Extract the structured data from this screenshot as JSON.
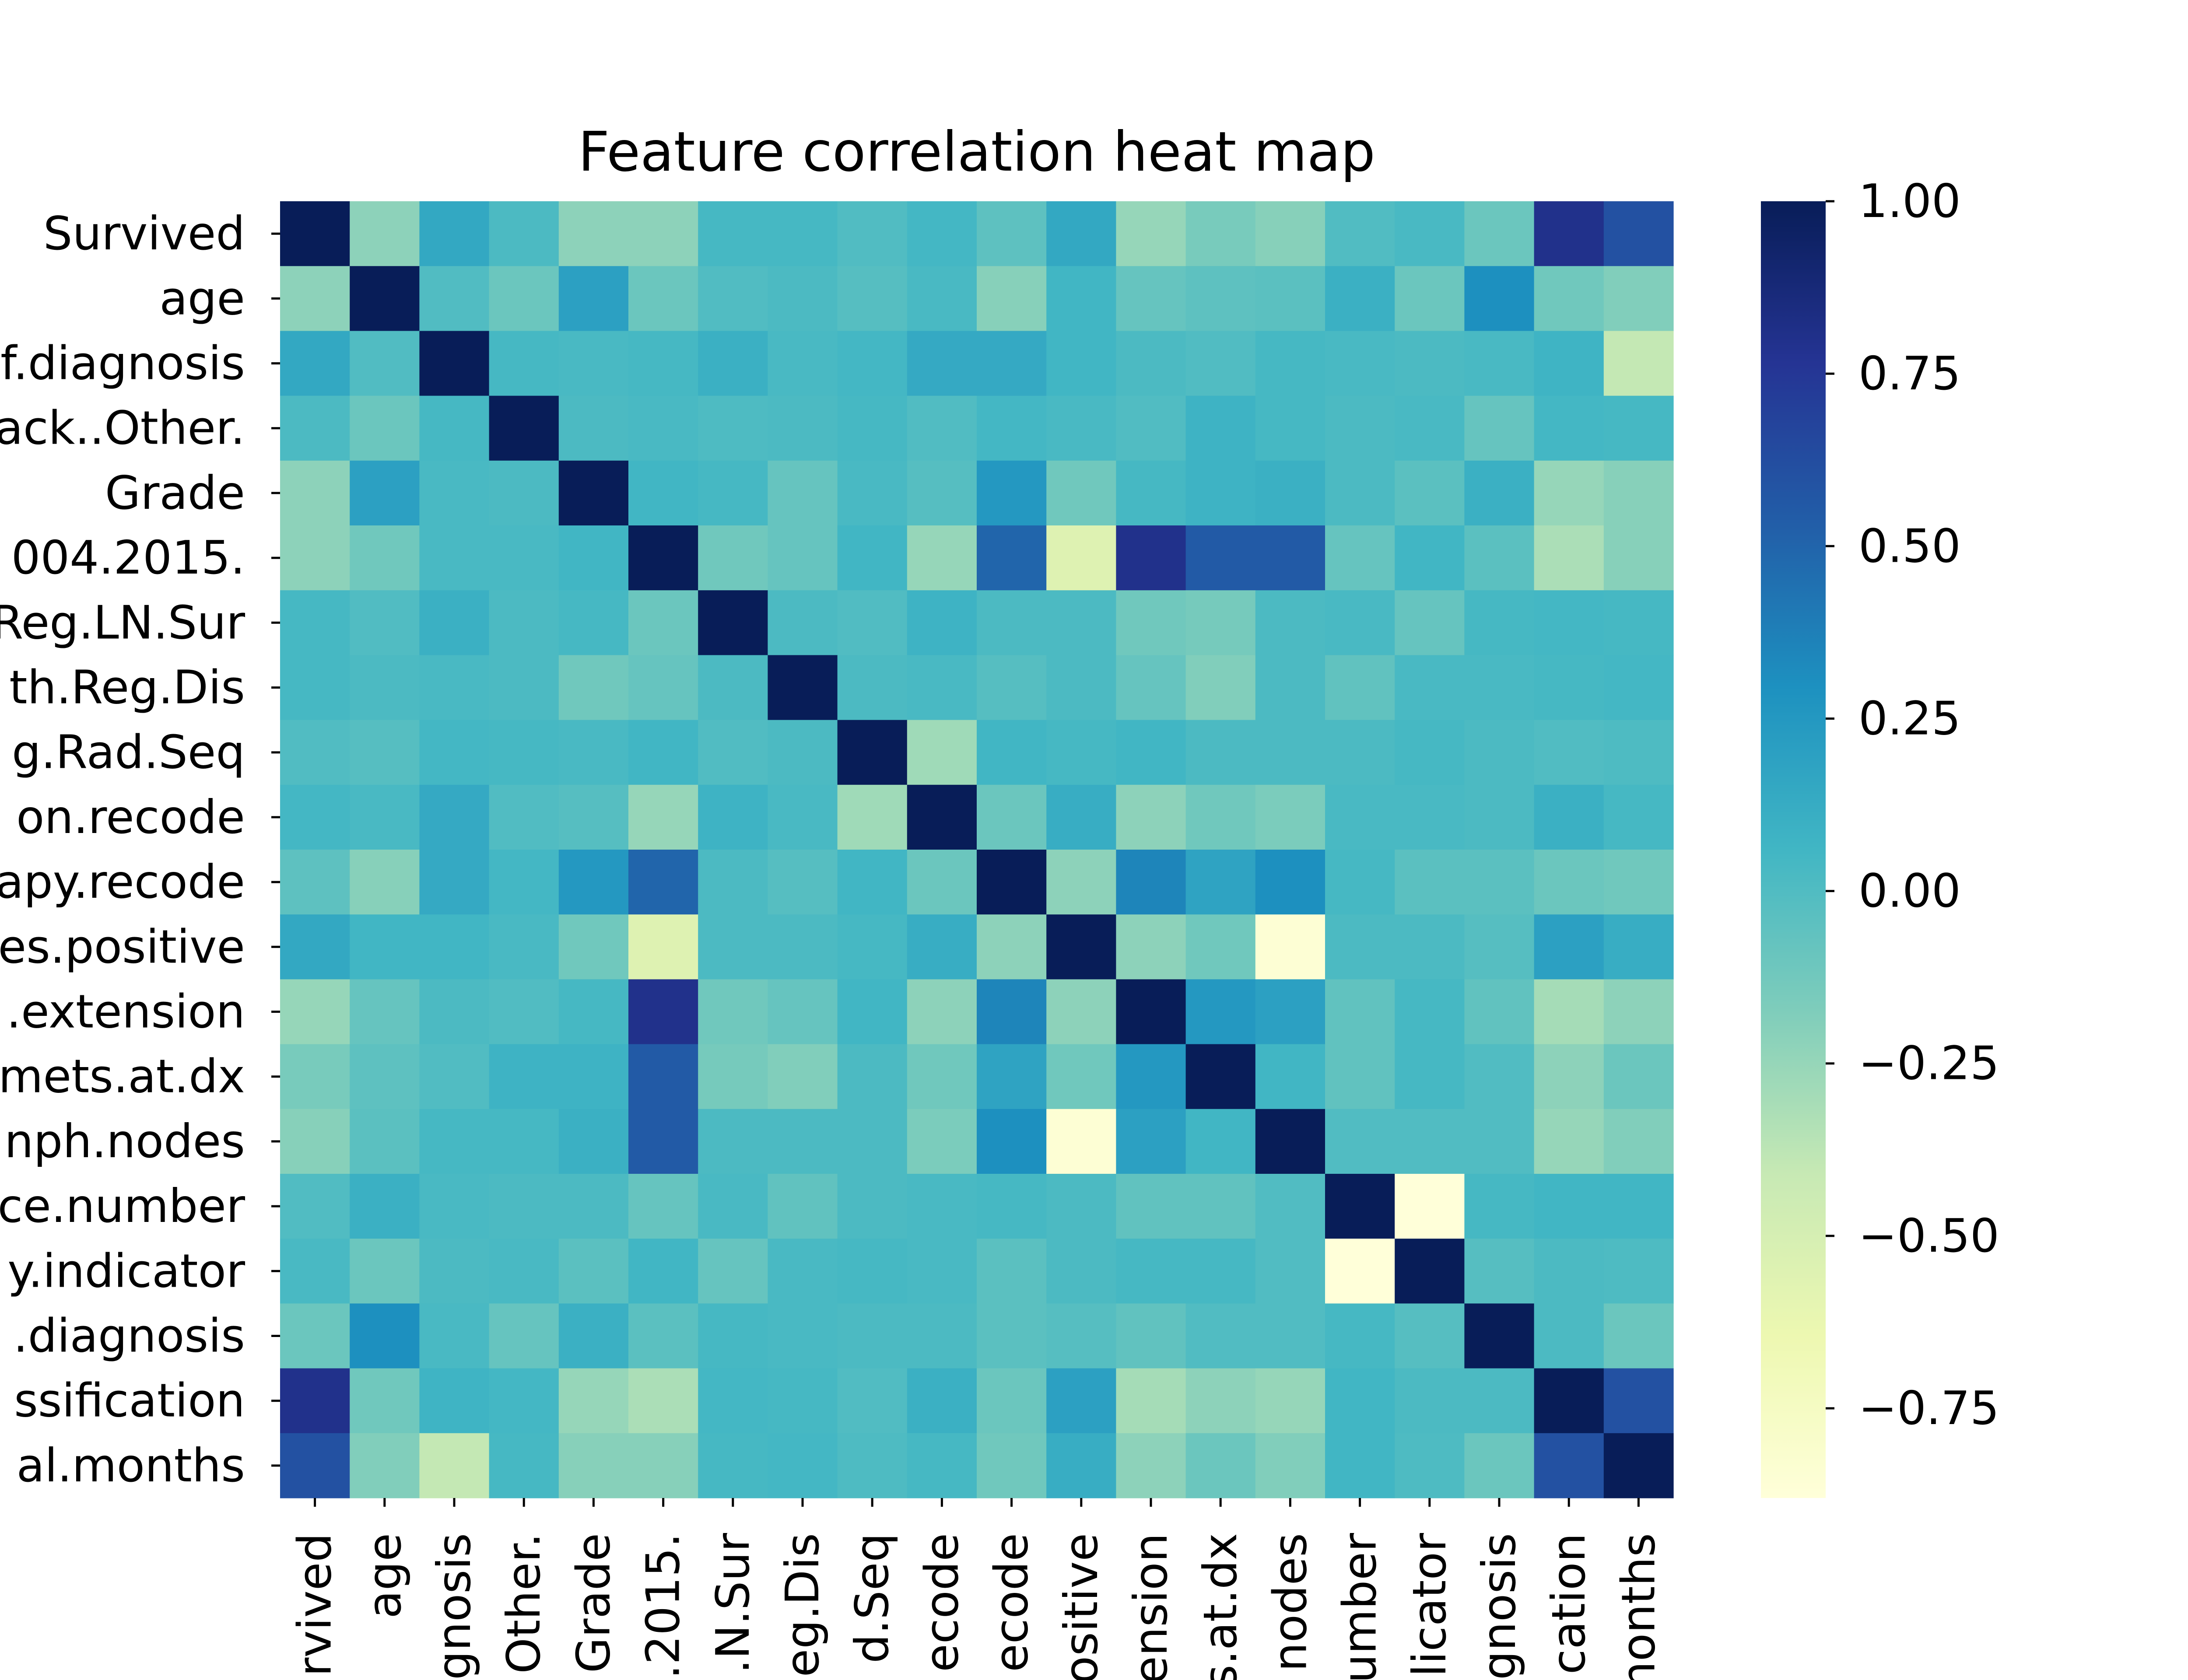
{
  "chart_data": {
    "type": "heatmap",
    "title": "Feature correlation heat map",
    "colormap": "YlGnBu",
    "row_labels": [
      "Survived",
      "age",
      "f.diagnosis",
      "ack..Other.",
      "Grade",
      "004.2015.",
      "Reg.LN.Sur",
      "th.Reg.Dis",
      "g.Rad.Seq",
      "on.recode",
      "apy.recode",
      "es.positive",
      ".extension",
      "mets.at.dx",
      "nph.nodes",
      "ce.number",
      "y.indicator",
      ".diagnosis",
      "ssification",
      "al.months"
    ],
    "column_labels": [
      "rvived",
      "age",
      "gnosis",
      "Other.",
      "Grade",
      ".2015.",
      ".N.Sur",
      "eg.Dis",
      "d.Seq",
      "ecode",
      "ecode",
      "ositive",
      "ension",
      "s.at.dx",
      "nodes",
      "umber",
      "licator",
      "gnosis",
      "cation",
      "months"
    ],
    "values": [
      [
        1.0,
        -0.22,
        0.15,
        0.02,
        -0.22,
        -0.22,
        0.04,
        0.04,
        0.0,
        0.05,
        -0.05,
        0.15,
        -0.25,
        -0.15,
        -0.2,
        0.0,
        0.03,
        -0.1,
        0.8,
        0.6
      ],
      [
        -0.22,
        1.0,
        0.0,
        -0.1,
        0.2,
        -0.1,
        0.0,
        0.02,
        -0.02,
        0.03,
        -0.2,
        0.06,
        -0.08,
        -0.05,
        -0.04,
        0.1,
        -0.1,
        0.3,
        -0.12,
        -0.18
      ],
      [
        0.15,
        0.0,
        1.0,
        0.04,
        0.03,
        0.04,
        0.1,
        0.03,
        0.05,
        0.14,
        0.14,
        0.06,
        0.02,
        0.0,
        0.04,
        0.03,
        0.02,
        0.03,
        0.07,
        -0.4
      ],
      [
        0.02,
        -0.1,
        0.04,
        1.0,
        0.02,
        0.03,
        0.01,
        0.02,
        0.04,
        0.0,
        0.05,
        0.03,
        0.0,
        0.08,
        0.04,
        0.02,
        0.03,
        -0.08,
        0.05,
        0.04
      ],
      [
        -0.22,
        0.2,
        0.03,
        0.02,
        1.0,
        0.06,
        0.04,
        -0.08,
        0.03,
        -0.02,
        0.25,
        -0.12,
        0.04,
        0.08,
        0.1,
        0.02,
        -0.04,
        0.1,
        -0.25,
        -0.2
      ],
      [
        -0.22,
        -0.12,
        0.03,
        0.03,
        0.06,
        1.0,
        -0.12,
        -0.08,
        0.06,
        -0.25,
        0.5,
        -0.55,
        0.8,
        0.55,
        0.55,
        -0.08,
        0.06,
        -0.04,
        -0.32,
        -0.2
      ],
      [
        0.04,
        0.0,
        0.1,
        0.02,
        0.04,
        -0.1,
        1.0,
        0.02,
        0.0,
        0.08,
        0.02,
        0.02,
        -0.12,
        -0.14,
        0.02,
        0.03,
        -0.08,
        0.04,
        0.05,
        0.04
      ],
      [
        0.04,
        0.02,
        0.03,
        0.02,
        -0.12,
        -0.08,
        0.02,
        1.0,
        0.02,
        0.03,
        -0.02,
        0.02,
        -0.08,
        -0.18,
        0.02,
        -0.06,
        0.03,
        0.03,
        0.04,
        0.05
      ],
      [
        0.0,
        -0.02,
        0.05,
        0.04,
        0.03,
        0.06,
        0.0,
        0.02,
        1.0,
        -0.28,
        0.06,
        0.04,
        0.06,
        0.02,
        0.02,
        0.02,
        0.04,
        0.02,
        0.0,
        0.01
      ],
      [
        0.05,
        0.03,
        0.14,
        0.0,
        -0.02,
        -0.25,
        0.08,
        0.03,
        -0.28,
        1.0,
        -0.1,
        0.12,
        -0.22,
        -0.12,
        -0.16,
        0.03,
        0.03,
        0.02,
        0.1,
        0.04
      ],
      [
        -0.05,
        -0.2,
        0.14,
        0.05,
        0.25,
        0.5,
        0.02,
        -0.02,
        0.06,
        -0.1,
        1.0,
        -0.22,
        0.35,
        0.18,
        0.3,
        0.04,
        -0.04,
        -0.04,
        -0.1,
        -0.12
      ],
      [
        0.15,
        0.06,
        0.06,
        0.03,
        -0.12,
        -0.55,
        0.02,
        0.02,
        0.04,
        0.12,
        -0.22,
        1.0,
        -0.22,
        -0.12,
        -0.85,
        0.02,
        0.02,
        -0.02,
        0.2,
        0.12
      ],
      [
        -0.25,
        -0.08,
        0.02,
        0.0,
        0.04,
        0.8,
        -0.12,
        -0.08,
        0.06,
        -0.22,
        0.35,
        -0.22,
        1.0,
        0.25,
        0.2,
        -0.06,
        0.04,
        -0.06,
        -0.3,
        -0.22
      ],
      [
        -0.15,
        -0.05,
        0.0,
        0.08,
        0.08,
        0.55,
        -0.14,
        -0.18,
        0.02,
        -0.12,
        0.18,
        -0.12,
        0.25,
        1.0,
        0.06,
        -0.06,
        0.04,
        0.0,
        -0.22,
        -0.1
      ],
      [
        -0.2,
        -0.04,
        0.04,
        0.04,
        0.1,
        0.55,
        0.02,
        0.02,
        0.02,
        -0.16,
        0.3,
        -0.85,
        0.2,
        0.06,
        1.0,
        0.0,
        0.0,
        0.0,
        -0.25,
        -0.18
      ],
      [
        0.0,
        0.1,
        0.03,
        0.02,
        0.02,
        -0.08,
        0.03,
        -0.06,
        0.02,
        0.03,
        0.04,
        0.02,
        -0.06,
        -0.06,
        0.0,
        1.0,
        -0.88,
        0.04,
        0.06,
        0.06
      ],
      [
        0.03,
        -0.1,
        0.02,
        0.03,
        -0.04,
        0.06,
        -0.08,
        0.03,
        0.04,
        0.03,
        -0.04,
        0.02,
        0.04,
        0.04,
        0.0,
        -0.88,
        1.0,
        -0.02,
        0.02,
        0.01
      ],
      [
        -0.1,
        0.3,
        0.03,
        -0.08,
        0.1,
        -0.04,
        0.04,
        0.03,
        0.02,
        0.02,
        -0.04,
        -0.02,
        -0.06,
        0.0,
        0.0,
        0.04,
        -0.02,
        1.0,
        0.02,
        -0.1
      ],
      [
        0.8,
        -0.12,
        0.07,
        0.05,
        -0.25,
        -0.32,
        0.05,
        0.04,
        0.0,
        0.1,
        -0.1,
        0.2,
        -0.3,
        -0.22,
        -0.25,
        0.06,
        0.02,
        0.02,
        1.0,
        0.6
      ],
      [
        0.6,
        -0.18,
        -0.4,
        0.04,
        -0.2,
        -0.2,
        0.04,
        0.05,
        0.01,
        0.04,
        -0.12,
        0.12,
        -0.22,
        -0.1,
        -0.18,
        0.06,
        0.01,
        -0.1,
        0.6,
        1.0
      ]
    ],
    "colorbar": {
      "vmin": -0.88,
      "vmax": 1.0,
      "ticks": [
        1.0,
        0.75,
        0.5,
        0.25,
        0.0,
        -0.25,
        -0.5,
        -0.75
      ],
      "tick_labels": [
        "1.00",
        "0.75",
        "0.50",
        "0.25",
        "0.00",
        "−0.25",
        "−0.50",
        "−0.75"
      ]
    }
  }
}
